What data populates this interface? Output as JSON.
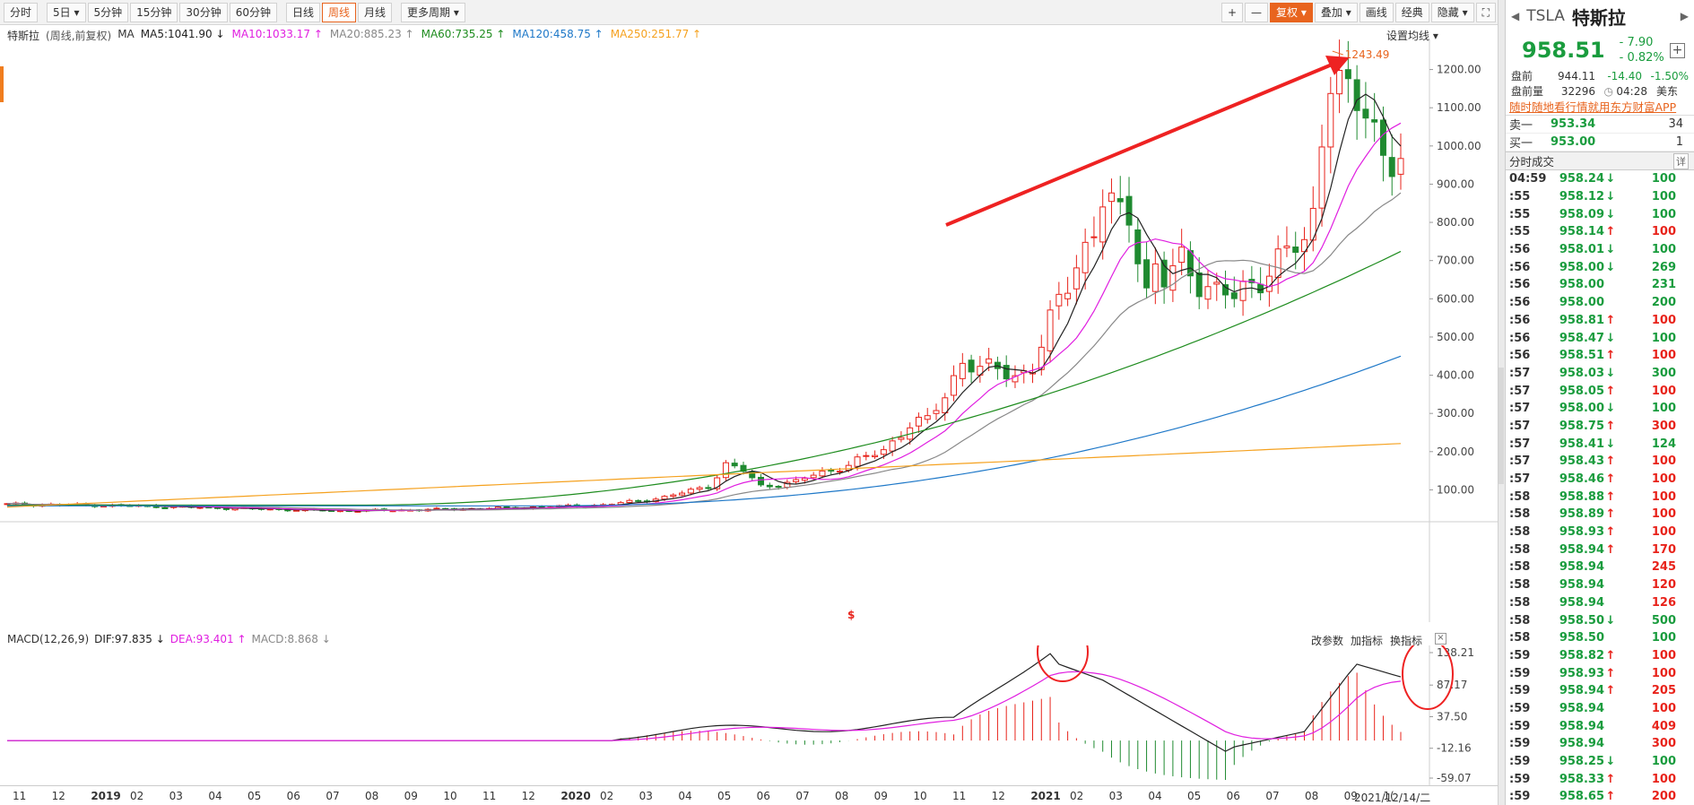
{
  "toolbar": {
    "periods": [
      "分时",
      "5日",
      "5分钟",
      "15分钟",
      "30分钟",
      "60分钟",
      "日线",
      "周线",
      "月线",
      "更多周期"
    ],
    "active_period": "周线",
    "right": [
      "+",
      "—",
      "复权",
      "叠加",
      "画线",
      "经典",
      "隐藏"
    ]
  },
  "chart": {
    "title": "特斯拉",
    "subtitle": "(周线,前复权)",
    "ma_label": "MA",
    "ma_values": [
      {
        "label": "MA5:1041.90",
        "arrow": "↓",
        "color": "#222222"
      },
      {
        "label": "MA10:1033.17",
        "arrow": "↑",
        "color": "#e01ee0"
      },
      {
        "label": "MA20:885.23",
        "arrow": "↑",
        "color": "#888888"
      },
      {
        "label": "MA60:735.25",
        "arrow": "↑",
        "color": "#1e8c1e"
      },
      {
        "label": "MA120:458.75",
        "arrow": "↑",
        "color": "#1e78c8"
      },
      {
        "label": "MA250:251.77",
        "arrow": "↑",
        "color": "#f5a11e"
      }
    ],
    "settings_label": "设置均线",
    "max_label": "1243.49",
    "marker": "$",
    "price_ticks": [
      "1200.00",
      "1100.00",
      "1000.00",
      "900.00",
      "800.00",
      "700.00",
      "600.00",
      "500.00",
      "400.00",
      "300.00",
      "200.00",
      "100.00"
    ]
  },
  "macd": {
    "title": "MACD(12,26,9)",
    "dif": "DIF:97.835 ↓",
    "dea": "DEA:93.401 ↑",
    "macd": "MACD:8.868 ↓",
    "tools": [
      "改参数",
      "加指标",
      "换指标"
    ],
    "close": "×",
    "ticks": [
      "138.21",
      "87.17",
      "37.50",
      "-12.16",
      "-59.07"
    ]
  },
  "xaxis": {
    "labels": [
      "11",
      "12",
      "2019",
      "02",
      "03",
      "04",
      "05",
      "06",
      "07",
      "08",
      "09",
      "10",
      "11",
      "12",
      "2020",
      "02",
      "03",
      "04",
      "05",
      "06",
      "07",
      "08",
      "09",
      "10",
      "11",
      "12",
      "2021",
      "02",
      "03",
      "04",
      "05",
      "06",
      "07",
      "08",
      "09",
      "1(",
      "2021/12/14/二"
    ]
  },
  "chart_data": {
    "type": "candlestick",
    "title": "特斯拉 (周线,前复权)",
    "xlabel": "",
    "ylabel": "",
    "ylim": [
      40,
      1260
    ],
    "y_scale": "linear",
    "x_range": [
      "2018-11",
      "2021-12"
    ],
    "peak_value": 1243.49,
    "series": [
      {
        "name": "MA5",
        "last": 1041.9,
        "color": "#222222"
      },
      {
        "name": "MA10",
        "last": 1033.17,
        "color": "#e01ee0"
      },
      {
        "name": "MA20",
        "last": 885.23,
        "color": "#888888"
      },
      {
        "name": "MA60",
        "last": 735.25,
        "color": "#1e8c1e"
      },
      {
        "name": "MA120",
        "last": 458.75,
        "color": "#1e78c8"
      },
      {
        "name": "MA250",
        "last": 251.77,
        "color": "#f5a11e"
      }
    ],
    "macd_last": {
      "DIF": 97.835,
      "DEA": 93.401,
      "MACD": 8.868
    },
    "macd_ylim": [
      -59.07,
      138.21
    ]
  },
  "panel": {
    "code": "TSLA",
    "name": "特斯拉",
    "price": "958.51",
    "change": "- 7.90",
    "change_pct": "- 0.82%",
    "pre1_label": "盘前",
    "pre1_price": "944.11",
    "pre1_chg": "-14.40",
    "pre1_pct": "-1.50%",
    "pre2_label": "盘前量",
    "pre2_vol": "32296",
    "pre2_time": "04:28",
    "pre2_tz": "美东",
    "ad": "随时随地看行情就用东方财富APP",
    "sell_label": "卖一",
    "sell_price": "953.34",
    "sell_vol": "34",
    "buy_label": "买一",
    "buy_price": "953.00",
    "buy_vol": "1",
    "trades_title": "分时成交",
    "detail_label": "详",
    "trades": [
      {
        "t": "04:59",
        "p": "958.24",
        "d": "dn",
        "v": "100",
        "vc": "g"
      },
      {
        "t": ":55",
        "p": "958.12",
        "d": "dn",
        "v": "100",
        "vc": "g"
      },
      {
        "t": ":55",
        "p": "958.09",
        "d": "dn",
        "v": "100",
        "vc": "g"
      },
      {
        "t": ":55",
        "p": "958.14",
        "d": "up",
        "v": "100",
        "vc": "r"
      },
      {
        "t": ":56",
        "p": "958.01",
        "d": "dn",
        "v": "100",
        "vc": "g"
      },
      {
        "t": ":56",
        "p": "958.00",
        "d": "dn",
        "v": "269",
        "vc": "g"
      },
      {
        "t": ":56",
        "p": "958.00",
        "d": "",
        "v": "231",
        "vc": "g"
      },
      {
        "t": ":56",
        "p": "958.00",
        "d": "",
        "v": "200",
        "vc": "g"
      },
      {
        "t": ":56",
        "p": "958.81",
        "d": "up",
        "v": "100",
        "vc": "r"
      },
      {
        "t": ":56",
        "p": "958.47",
        "d": "dn",
        "v": "100",
        "vc": "g"
      },
      {
        "t": ":56",
        "p": "958.51",
        "d": "up",
        "v": "100",
        "vc": "r"
      },
      {
        "t": ":57",
        "p": "958.03",
        "d": "dn",
        "v": "300",
        "vc": "g"
      },
      {
        "t": ":57",
        "p": "958.05",
        "d": "up",
        "v": "100",
        "vc": "r"
      },
      {
        "t": ":57",
        "p": "958.00",
        "d": "dn",
        "v": "100",
        "vc": "g"
      },
      {
        "t": ":57",
        "p": "958.75",
        "d": "up",
        "v": "300",
        "vc": "r"
      },
      {
        "t": ":57",
        "p": "958.41",
        "d": "dn",
        "v": "124",
        "vc": "g"
      },
      {
        "t": ":57",
        "p": "958.43",
        "d": "up",
        "v": "100",
        "vc": "r"
      },
      {
        "t": ":57",
        "p": "958.46",
        "d": "up",
        "v": "100",
        "vc": "r"
      },
      {
        "t": ":58",
        "p": "958.88",
        "d": "up",
        "v": "100",
        "vc": "r"
      },
      {
        "t": ":58",
        "p": "958.89",
        "d": "up",
        "v": "100",
        "vc": "r"
      },
      {
        "t": ":58",
        "p": "958.93",
        "d": "up",
        "v": "100",
        "vc": "r"
      },
      {
        "t": ":58",
        "p": "958.94",
        "d": "up",
        "v": "170",
        "vc": "r"
      },
      {
        "t": ":58",
        "p": "958.94",
        "d": "",
        "v": "245",
        "vc": "r"
      },
      {
        "t": ":58",
        "p": "958.94",
        "d": "",
        "v": "120",
        "vc": "r"
      },
      {
        "t": ":58",
        "p": "958.94",
        "d": "",
        "v": "126",
        "vc": "r"
      },
      {
        "t": ":58",
        "p": "958.50",
        "d": "dn",
        "v": "500",
        "vc": "g"
      },
      {
        "t": ":58",
        "p": "958.50",
        "d": "",
        "v": "100",
        "vc": "g"
      },
      {
        "t": ":59",
        "p": "958.82",
        "d": "up",
        "v": "100",
        "vc": "r"
      },
      {
        "t": ":59",
        "p": "958.93",
        "d": "up",
        "v": "100",
        "vc": "r"
      },
      {
        "t": ":59",
        "p": "958.94",
        "d": "up",
        "v": "205",
        "vc": "r"
      },
      {
        "t": ":59",
        "p": "958.94",
        "d": "",
        "v": "100",
        "vc": "r"
      },
      {
        "t": ":59",
        "p": "958.94",
        "d": "",
        "v": "409",
        "vc": "r"
      },
      {
        "t": ":59",
        "p": "958.94",
        "d": "",
        "v": "300",
        "vc": "r"
      },
      {
        "t": ":59",
        "p": "958.25",
        "d": "dn",
        "v": "100",
        "vc": "g"
      },
      {
        "t": ":59",
        "p": "958.33",
        "d": "up",
        "v": "100",
        "vc": "r"
      },
      {
        "t": ":59",
        "p": "958.65",
        "d": "up",
        "v": "200",
        "vc": "r"
      }
    ]
  }
}
